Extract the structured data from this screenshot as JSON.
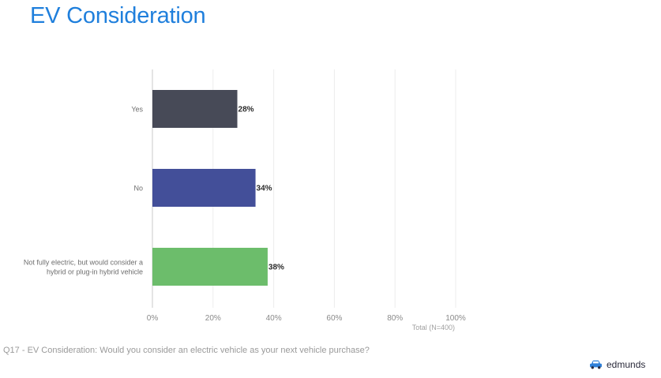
{
  "header": {
    "title": "EV Consideration"
  },
  "chart_data": {
    "type": "bar",
    "orientation": "horizontal",
    "categories": [
      "Yes",
      "No",
      "Not fully electric, but would consider a hybrid or plug-in hybrid vehicle"
    ],
    "category_lines": [
      [
        "Yes"
      ],
      [
        "No"
      ],
      [
        "Not fully electric, but would consider a",
        "hybrid or plug-in hybrid vehicle"
      ]
    ],
    "values": [
      28,
      34,
      38
    ],
    "data_labels": [
      "28%",
      "34%",
      "38%"
    ],
    "colors": [
      "#474a57",
      "#434f99",
      "#6cbd6b"
    ],
    "xlim": [
      0,
      100
    ],
    "x_ticks": [
      0,
      20,
      40,
      60,
      80,
      100
    ],
    "x_tick_labels": [
      "0%",
      "20%",
      "40%",
      "60%",
      "80%",
      "100%"
    ],
    "xlabel": "Total (N=400)",
    "grid": true,
    "legend": "none"
  },
  "footer": {
    "question": "Q17 - EV Consideration: Would you consider an electric vehicle as your next vehicle purchase?",
    "brand": "edmunds",
    "brand_icon": "car-icon"
  }
}
